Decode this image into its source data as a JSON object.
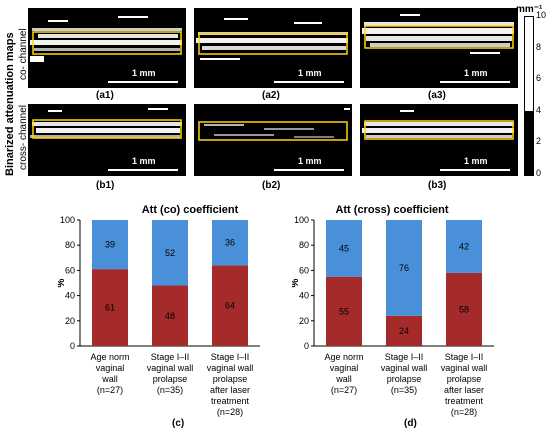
{
  "side_labels": {
    "main": "Binarized attenuation maps",
    "row1": "co- channel",
    "row2": "cross- channel"
  },
  "panels": {
    "labels": [
      "(a1)",
      "(a2)",
      "(a3)",
      "(b1)",
      "(b2)",
      "(b3)"
    ],
    "scalebar": "1 mm"
  },
  "colorbar": {
    "unit": "mm⁻¹",
    "ticks": [
      "10",
      "8",
      "6",
      "4",
      "2",
      "0"
    ],
    "threshold": 4
  },
  "colors": {
    "lower_segment": "#A52A2A",
    "upper_segment": "#4A90D9",
    "roi_box": "#FFD700"
  },
  "chart_data": [
    {
      "type": "bar",
      "stacked": true,
      "title": "Att (co) coefficient",
      "tag": "(c)",
      "ylabel": "%",
      "ylim": [
        0,
        100
      ],
      "yticks": [
        "0",
        "20",
        "40",
        "60",
        "80",
        "100"
      ],
      "categories": [
        [
          "Age norm",
          "vaginal",
          "wall",
          "(n=27)"
        ],
        [
          "Stage I–II",
          "vaginal wall",
          "prolapse",
          "(n=35)"
        ],
        [
          "Stage I–II",
          "vaginal wall",
          "prolapse",
          "after laser",
          "treatment",
          "(n=28)"
        ]
      ],
      "series": [
        {
          "values": [
            61,
            48,
            64
          ],
          "color": "#A52A2A"
        },
        {
          "values": [
            39,
            52,
            36
          ],
          "color": "#4A90D9"
        }
      ]
    },
    {
      "type": "bar",
      "stacked": true,
      "title": "Att (cross) coefficient",
      "tag": "(d)",
      "ylabel": "%",
      "ylim": [
        0,
        100
      ],
      "yticks": [
        "0",
        "20",
        "40",
        "60",
        "80",
        "100"
      ],
      "categories": [
        [
          "Age norm",
          "vaginal",
          "wall",
          "(n=27)"
        ],
        [
          "Stage I–II",
          "vaginal wall",
          "prolapse",
          "(n=35)"
        ],
        [
          "Stage I–II",
          "vaginal wall",
          "prolapse",
          "after laser",
          "treatment",
          "(n=28)"
        ]
      ],
      "series": [
        {
          "values": [
            55,
            24,
            58
          ],
          "color": "#A52A2A"
        },
        {
          "values": [
            45,
            76,
            42
          ],
          "color": "#4A90D9"
        }
      ]
    }
  ]
}
